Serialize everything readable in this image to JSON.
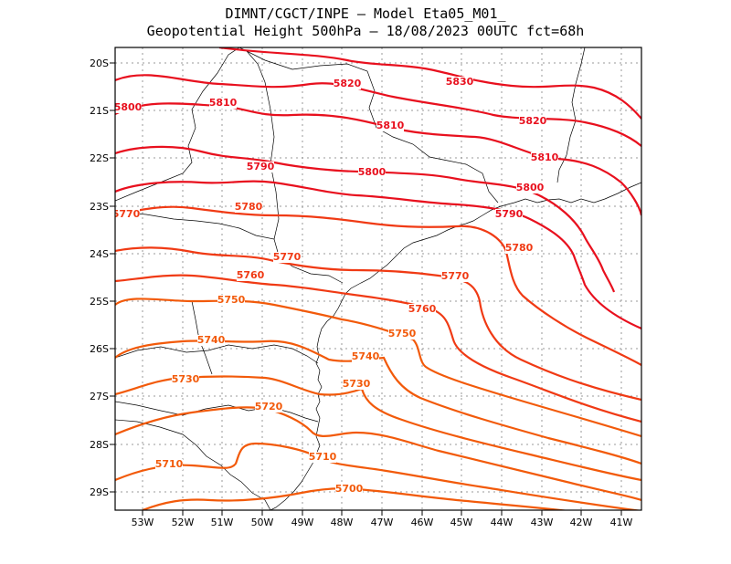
{
  "title_line1": "DIMNT/CGCT/INPE –   Model Eta05_M01_",
  "title_line2": "Geopotential Height 500hPa –   18/08/2023 00UTC fct=68h",
  "lat_ticks": [
    "20S",
    "21S",
    "22S",
    "23S",
    "24S",
    "25S",
    "26S",
    "27S",
    "28S",
    "29S"
  ],
  "lon_ticks": [
    "53W",
    "52W",
    "51W",
    "50W",
    "49W",
    "48W",
    "47W",
    "46W",
    "45W",
    "44W",
    "43W",
    "42W",
    "41W"
  ],
  "contour_labels": [
    {
      "text": "5830"
    },
    {
      "text": "5820"
    },
    {
      "text": "5820"
    },
    {
      "text": "5810"
    },
    {
      "text": "5810"
    },
    {
      "text": "5810"
    },
    {
      "text": "5800"
    },
    {
      "text": "5800"
    },
    {
      "text": "5800"
    },
    {
      "text": "5790"
    },
    {
      "text": "5790"
    },
    {
      "text": "5780"
    },
    {
      "text": "5780"
    },
    {
      "text": "5770"
    },
    {
      "text": "5770"
    },
    {
      "text": "5770"
    },
    {
      "text": "5760"
    },
    {
      "text": "5760"
    },
    {
      "text": "5750"
    },
    {
      "text": "5750"
    },
    {
      "text": "5740"
    },
    {
      "text": "5740"
    },
    {
      "text": "5730"
    },
    {
      "text": "5730"
    },
    {
      "text": "5720"
    },
    {
      "text": "5710"
    },
    {
      "text": "5710"
    },
    {
      "text": "5700"
    }
  ],
  "colors": {
    "high_contours": "#e8101e",
    "mid_contours": "#f03a14",
    "low_contours": "#f25a0a",
    "coastline": "#000000",
    "grid": "#9a9a9a"
  }
}
